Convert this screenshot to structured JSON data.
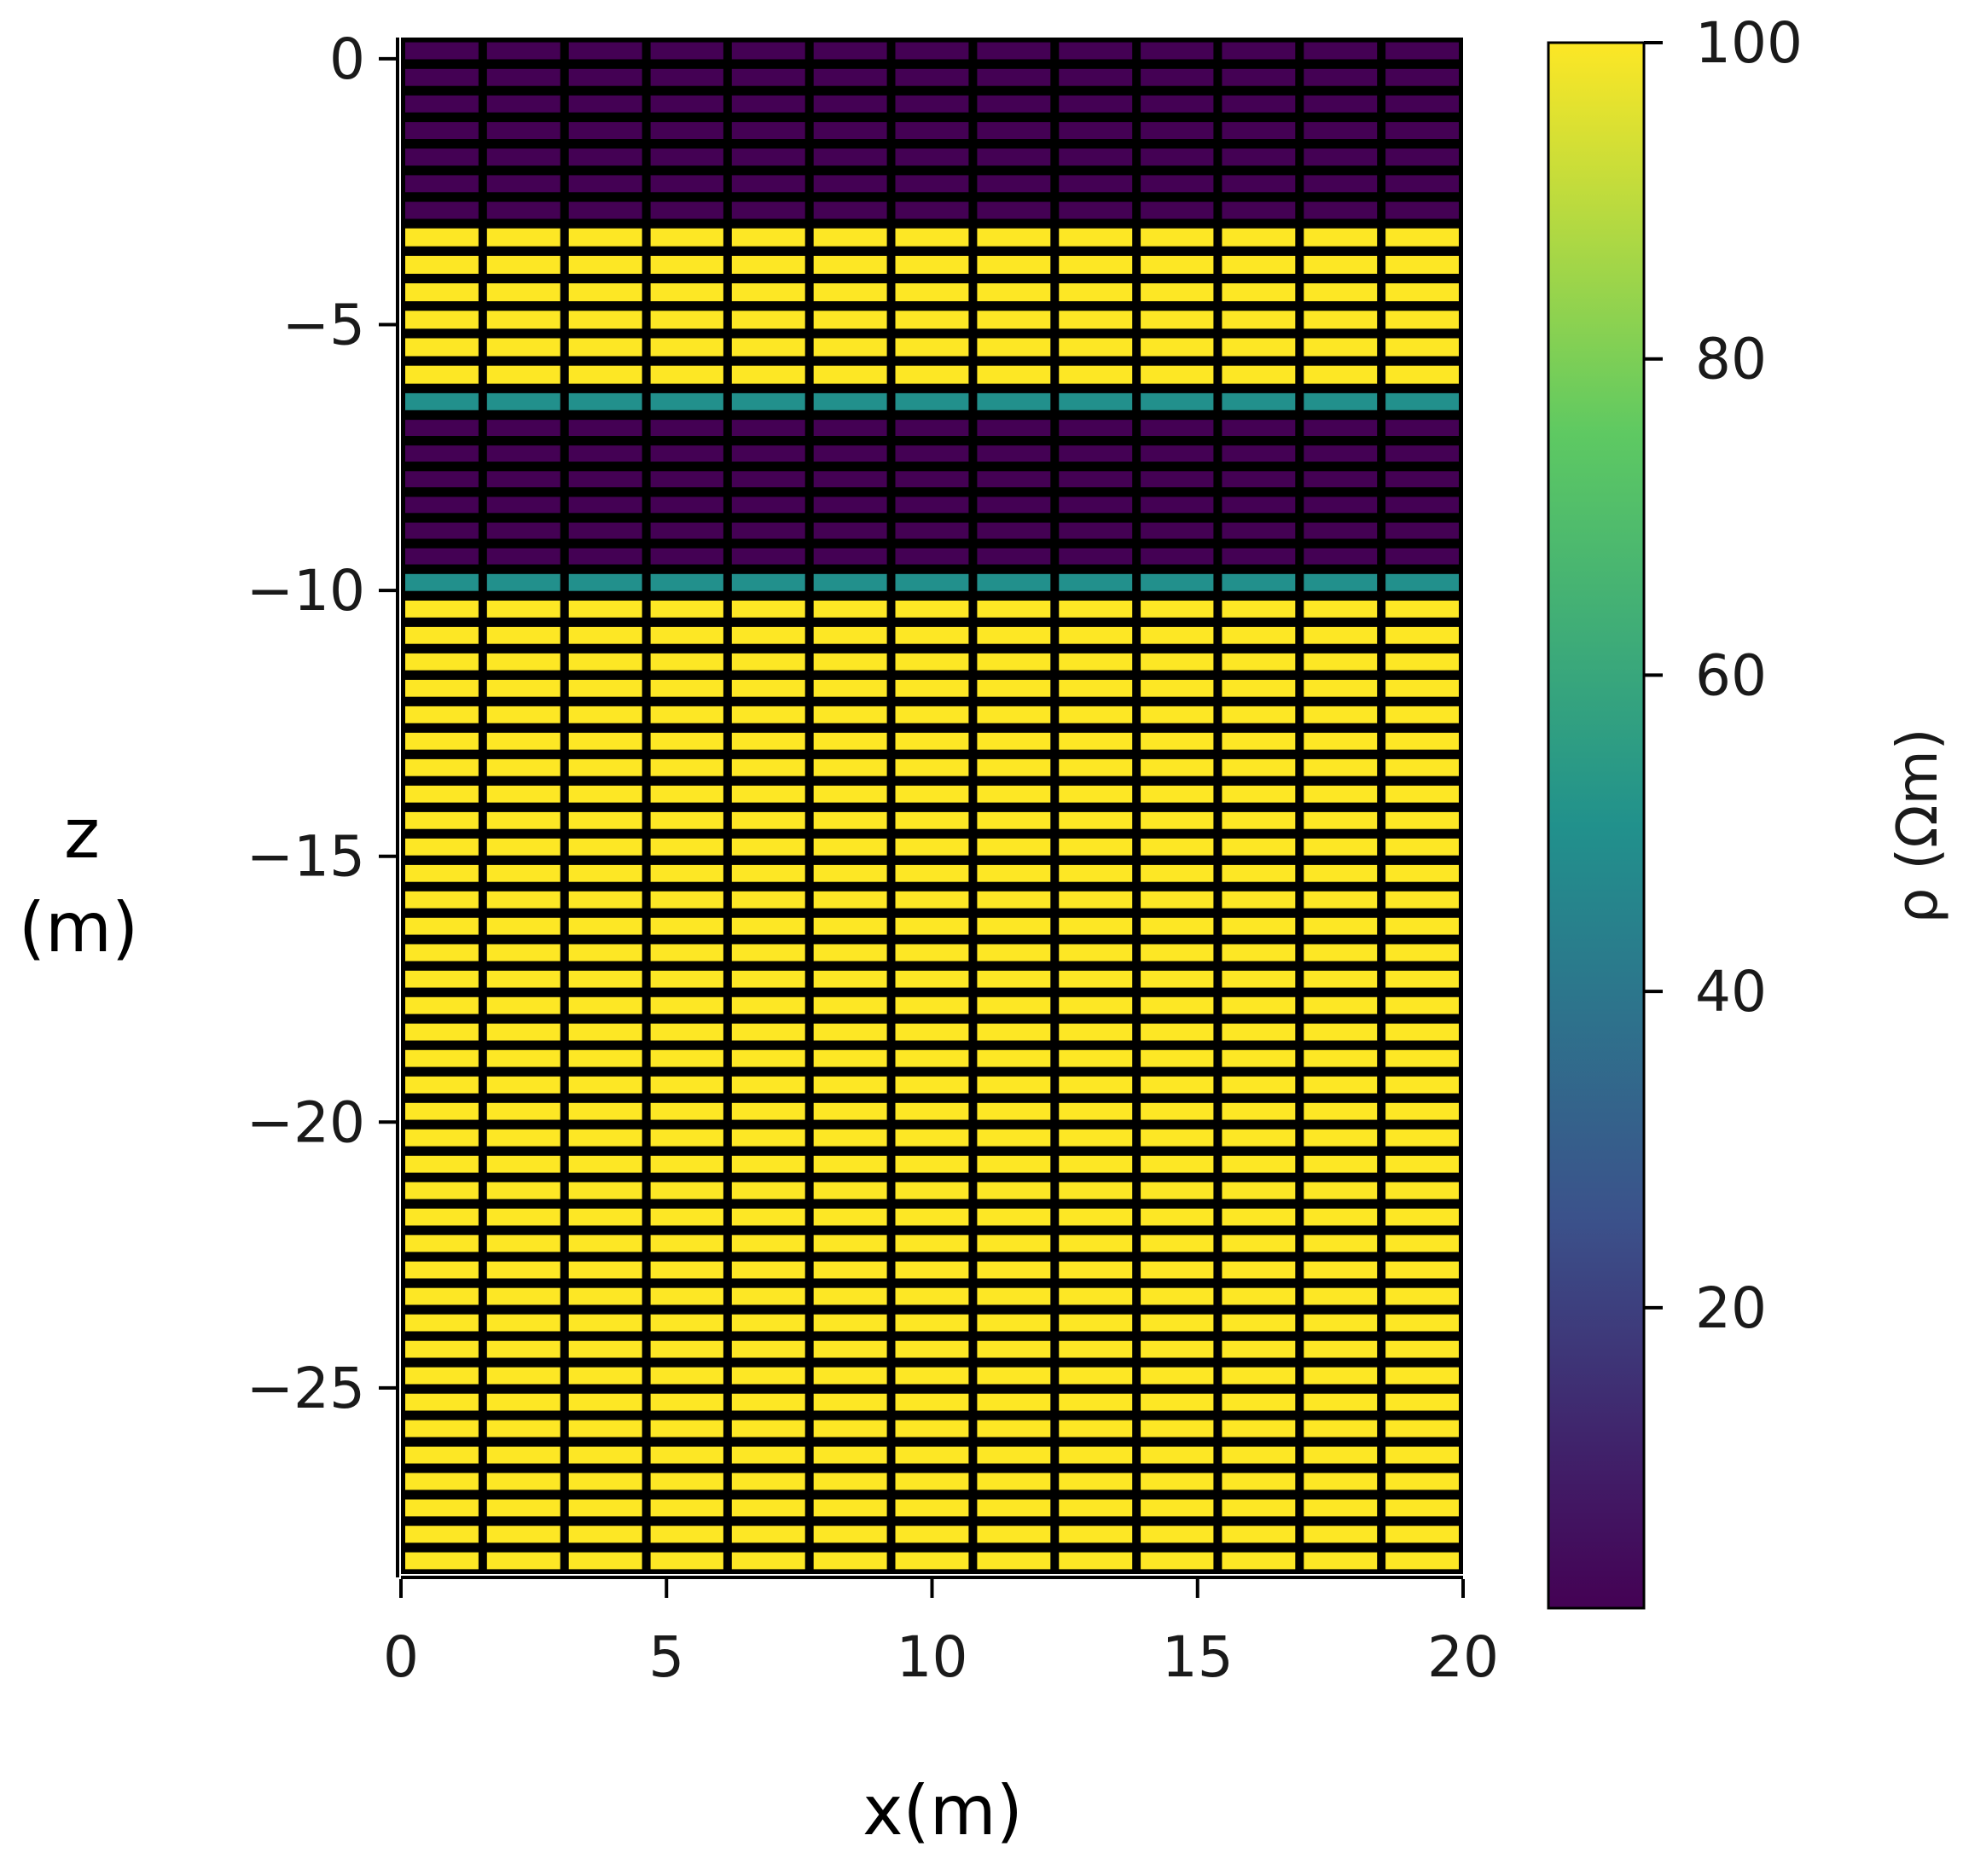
{
  "chart_data": {
    "type": "heatmap",
    "xlabel": "x(m)",
    "ylabel": [
      "z",
      "(m)"
    ],
    "colorbar_label": "ρ (Ωm)",
    "colormap": "viridis",
    "colormap_stops": [
      "#440154",
      "#3b528b",
      "#21918c",
      "#5ec962",
      "#fde725"
    ],
    "xlim": [
      0,
      20
    ],
    "ylim": [
      -28.5,
      0.4
    ],
    "x_ticks": [
      0,
      5,
      10,
      15,
      20
    ],
    "x_tick_labels": [
      "0",
      "5",
      "10",
      "15",
      "20"
    ],
    "y_ticks": [
      0,
      -5,
      -10,
      -15,
      -20,
      -25
    ],
    "y_tick_labels": [
      "0",
      "−5",
      "−10",
      "−15",
      "−20",
      "−25"
    ],
    "colorbar_range": [
      1,
      100
    ],
    "colorbar_ticks": [
      20,
      40,
      60,
      80,
      100
    ],
    "colorbar_tick_labels": [
      "20",
      "40",
      "60",
      "80",
      "100"
    ],
    "cell_edgecolor": "#000000",
    "mesh": {
      "x_edges": [
        0,
        1.54,
        3.08,
        4.62,
        6.15,
        7.69,
        9.23,
        10.77,
        12.31,
        13.85,
        15.38,
        16.92,
        18.46,
        20
      ],
      "cell_height": 0.5,
      "z_top": 0.4,
      "z_bottom": -28.5
    },
    "layers": [
      {
        "z_top": 0.4,
        "z_bottom": -3.1,
        "rho": 1
      },
      {
        "z_top": -3.1,
        "z_bottom": -6.2,
        "rho": 100
      },
      {
        "z_top": -6.2,
        "z_bottom": -6.7,
        "rho": 50
      },
      {
        "z_top": -6.7,
        "z_bottom": -9.6,
        "rho": 1
      },
      {
        "z_top": -9.6,
        "z_bottom": -10.1,
        "rho": 50
      },
      {
        "z_top": -10.1,
        "z_bottom": -28.5,
        "rho": 100
      }
    ]
  }
}
